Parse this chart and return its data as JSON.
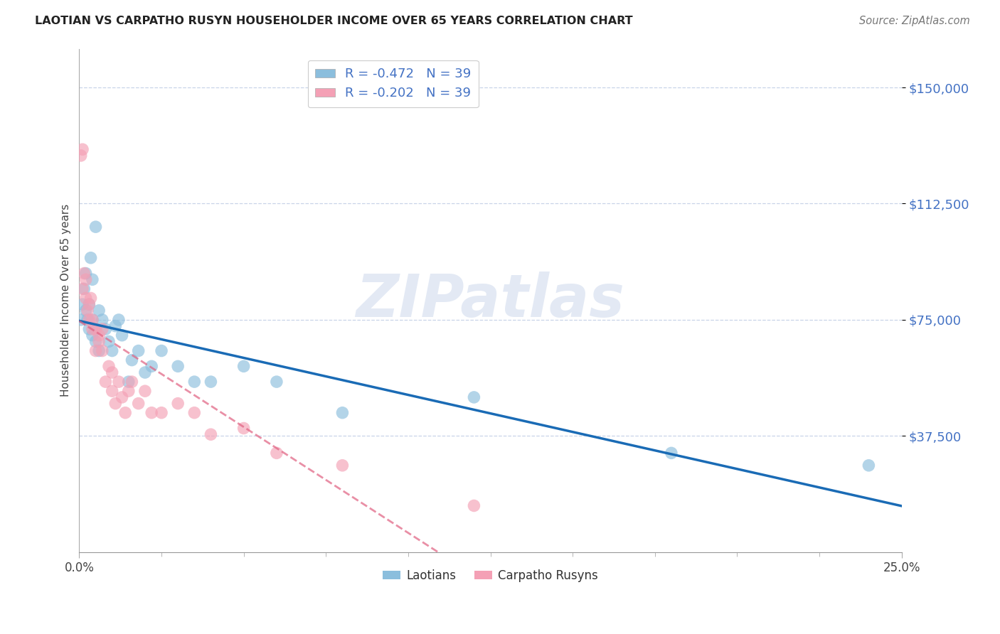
{
  "title": "LAOTIAN VS CARPATHO RUSYN HOUSEHOLDER INCOME OVER 65 YEARS CORRELATION CHART",
  "source": "Source: ZipAtlas.com",
  "ylabel": "Householder Income Over 65 years",
  "watermark": "ZIPatlas",
  "laotian_R": "-0.472",
  "laotian_N": "39",
  "rusyn_R": "-0.202",
  "rusyn_N": "39",
  "laotian_color": "#8bbedd",
  "rusyn_color": "#f4a0b5",
  "laotian_line_color": "#1a6bb5",
  "rusyn_line_color": "#e06080",
  "ytick_labels": [
    "$150,000",
    "$112,500",
    "$75,000",
    "$37,500"
  ],
  "ytick_values": [
    150000,
    112500,
    75000,
    37500
  ],
  "ymax": 162500,
  "ymin": 0,
  "xmax": 0.25,
  "xmin": 0.0,
  "background_color": "#ffffff",
  "grid_color": "#c8d4e8",
  "legend_label_laotian": "Laotians",
  "legend_label_rusyn": "Carpatho Rusyns",
  "laotian_x": [
    0.0005,
    0.001,
    0.0015,
    0.002,
    0.002,
    0.0025,
    0.003,
    0.003,
    0.0035,
    0.004,
    0.004,
    0.004,
    0.005,
    0.005,
    0.005,
    0.006,
    0.006,
    0.007,
    0.008,
    0.009,
    0.01,
    0.011,
    0.012,
    0.013,
    0.015,
    0.016,
    0.018,
    0.02,
    0.022,
    0.025,
    0.03,
    0.035,
    0.04,
    0.05,
    0.06,
    0.08,
    0.12,
    0.18,
    0.24
  ],
  "laotian_y": [
    75000,
    80000,
    85000,
    90000,
    78000,
    75000,
    72000,
    80000,
    95000,
    88000,
    70000,
    75000,
    68000,
    72000,
    105000,
    65000,
    78000,
    75000,
    72000,
    68000,
    65000,
    73000,
    75000,
    70000,
    55000,
    62000,
    65000,
    58000,
    60000,
    65000,
    60000,
    55000,
    55000,
    60000,
    55000,
    45000,
    50000,
    32000,
    28000
  ],
  "rusyn_x": [
    0.0005,
    0.001,
    0.001,
    0.0015,
    0.002,
    0.002,
    0.0025,
    0.003,
    0.003,
    0.0035,
    0.004,
    0.004,
    0.005,
    0.005,
    0.006,
    0.006,
    0.007,
    0.007,
    0.008,
    0.009,
    0.01,
    0.01,
    0.011,
    0.012,
    0.013,
    0.014,
    0.015,
    0.016,
    0.018,
    0.02,
    0.022,
    0.025,
    0.03,
    0.035,
    0.04,
    0.05,
    0.06,
    0.08,
    0.12
  ],
  "rusyn_y": [
    128000,
    130000,
    85000,
    90000,
    82000,
    88000,
    78000,
    80000,
    75000,
    82000,
    72000,
    75000,
    72000,
    65000,
    70000,
    68000,
    72000,
    65000,
    55000,
    60000,
    58000,
    52000,
    48000,
    55000,
    50000,
    45000,
    52000,
    55000,
    48000,
    52000,
    45000,
    45000,
    48000,
    45000,
    38000,
    40000,
    32000,
    28000,
    15000
  ]
}
